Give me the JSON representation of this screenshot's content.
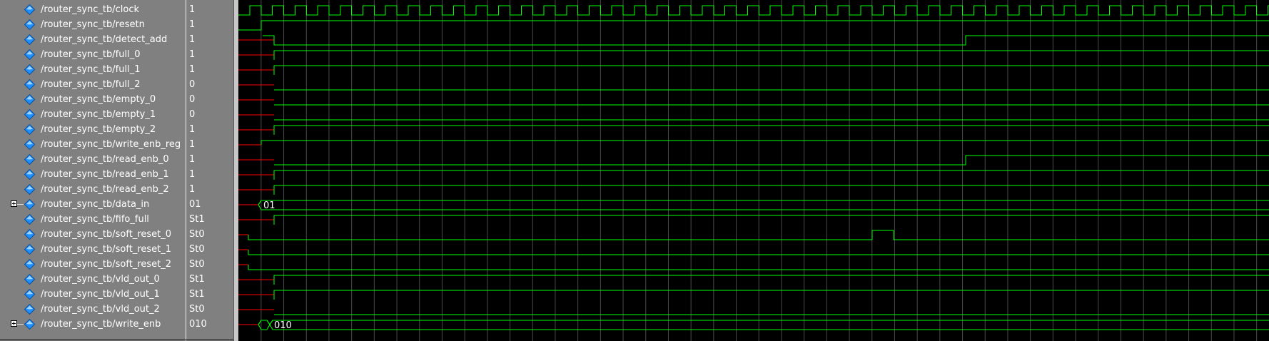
{
  "signals": [
    {
      "name": "/router_sync_tb/clock",
      "value": "1"
    },
    {
      "name": "/router_sync_tb/resetn",
      "value": "1"
    },
    {
      "name": "/router_sync_tb/detect_add",
      "value": "1"
    },
    {
      "name": "/router_sync_tb/full_0",
      "value": "1"
    },
    {
      "name": "/router_sync_tb/full_1",
      "value": "1"
    },
    {
      "name": "/router_sync_tb/full_2",
      "value": "0"
    },
    {
      "name": "/router_sync_tb/empty_0",
      "value": "0"
    },
    {
      "name": "/router_sync_tb/empty_1",
      "value": "0"
    },
    {
      "name": "/router_sync_tb/empty_2",
      "value": "1"
    },
    {
      "name": "/router_sync_tb/write_enb_reg",
      "value": "1"
    },
    {
      "name": "/router_sync_tb/read_enb_0",
      "value": "1"
    },
    {
      "name": "/router_sync_tb/read_enb_1",
      "value": "1"
    },
    {
      "name": "/router_sync_tb/read_enb_2",
      "value": "1"
    },
    {
      "name": "/router_sync_tb/data_in",
      "value": "01",
      "expandable": true,
      "bus_label": "01"
    },
    {
      "name": "/router_sync_tb/fifo_full",
      "value": "St1"
    },
    {
      "name": "/router_sync_tb/soft_reset_0",
      "value": "St0"
    },
    {
      "name": "/router_sync_tb/soft_reset_1",
      "value": "St0"
    },
    {
      "name": "/router_sync_tb/soft_reset_2",
      "value": "St0"
    },
    {
      "name": "/router_sync_tb/vld_out_0",
      "value": "St1"
    },
    {
      "name": "/router_sync_tb/vld_out_1",
      "value": "St1"
    },
    {
      "name": "/router_sync_tb/vld_out_2",
      "value": "St0"
    },
    {
      "name": "/router_sync_tb/write_enb",
      "value": "010",
      "expandable": true,
      "bus_label": "010"
    }
  ],
  "colors": {
    "wave_background": "#000000",
    "wave_normal": "#00ff00",
    "wave_unknown": "#ff0000",
    "grid": "#4a4a4a",
    "signal_diamond": "#1e90ff",
    "name_panel": "#808080"
  }
}
